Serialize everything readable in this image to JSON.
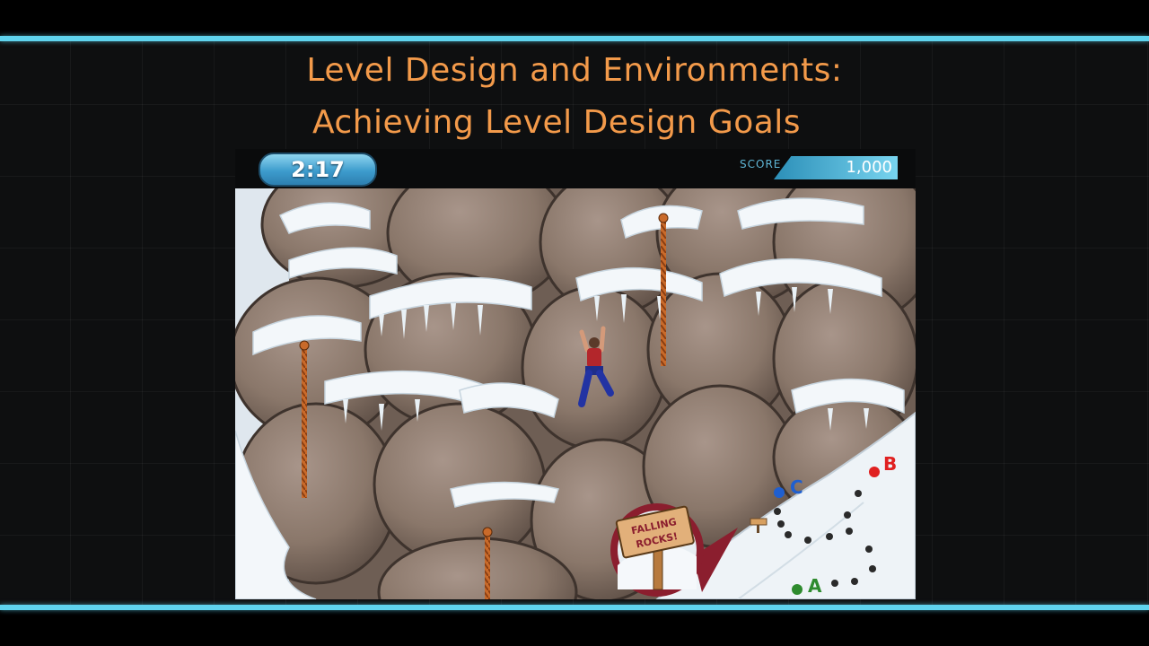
{
  "slide": {
    "title_line1": "Level Design and Environments:",
    "title_line2": "Achieving Level Design Goals"
  },
  "hud": {
    "timer": "2:17",
    "score_label": "SCORE",
    "score_value": "1,000"
  },
  "scene": {
    "sign_line1": "FALLING",
    "sign_line2": "ROCKS!",
    "markers": [
      {
        "label": "A",
        "color": "#2e8b2e"
      },
      {
        "label": "B",
        "color": "#e02020"
      },
      {
        "label": "C",
        "color": "#1f5fd0"
      }
    ]
  },
  "colors": {
    "accent": "#5fd3ee",
    "title": "#f39a4a",
    "rock": "#8d7a6b",
    "snow": "#f2f6f9"
  }
}
